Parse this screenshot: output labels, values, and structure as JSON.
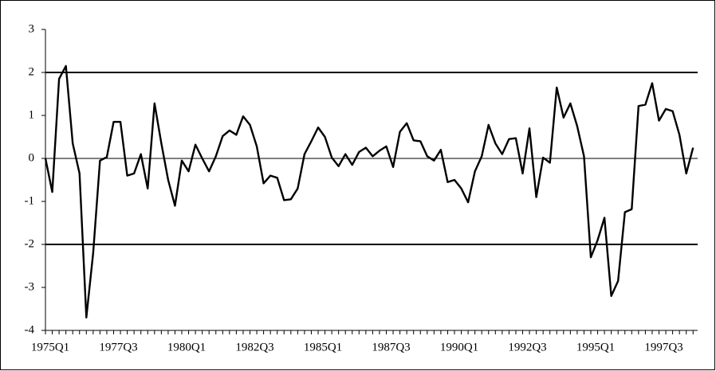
{
  "chart_data": {
    "type": "line",
    "categories": [
      "1975Q1",
      null,
      null,
      null,
      null,
      null,
      null,
      null,
      null,
      null,
      "1977Q3",
      null,
      null,
      null,
      null,
      null,
      null,
      null,
      null,
      null,
      "1980Q1",
      null,
      null,
      null,
      null,
      null,
      null,
      null,
      null,
      null,
      "1982Q3",
      null,
      null,
      null,
      null,
      null,
      null,
      null,
      null,
      null,
      "1985Q1",
      null,
      null,
      null,
      null,
      null,
      null,
      null,
      null,
      null,
      "1987Q3",
      null,
      null,
      null,
      null,
      null,
      null,
      null,
      null,
      null,
      "1990Q1",
      null,
      null,
      null,
      null,
      null,
      null,
      null,
      null,
      null,
      "1992Q3",
      null,
      null,
      null,
      null,
      null,
      null,
      null,
      null,
      null,
      "1995Q1",
      null,
      null,
      null,
      null,
      null,
      null,
      null,
      null,
      null,
      "1997Q3",
      null,
      null,
      null,
      null,
      null
    ],
    "values": [
      0.0,
      -0.78,
      1.85,
      2.15,
      0.35,
      -0.35,
      -3.7,
      -2.2,
      -0.05,
      0.03,
      0.85,
      0.85,
      -0.4,
      -0.35,
      0.1,
      -0.7,
      1.28,
      0.35,
      -0.5,
      -1.1,
      -0.05,
      -0.3,
      0.32,
      0.0,
      -0.3,
      0.05,
      0.52,
      0.65,
      0.55,
      0.98,
      0.78,
      0.28,
      -0.58,
      -0.4,
      -0.45,
      -0.97,
      -0.95,
      -0.7,
      0.1,
      0.4,
      0.72,
      0.5,
      0.02,
      -0.18,
      0.1,
      -0.15,
      0.15,
      0.25,
      0.05,
      0.18,
      0.28,
      -0.2,
      0.62,
      0.82,
      0.42,
      0.4,
      0.05,
      -0.05,
      0.2,
      -0.55,
      -0.5,
      -0.7,
      -1.02,
      -0.3,
      0.05,
      0.78,
      0.35,
      0.1,
      0.45,
      0.47,
      -0.35,
      0.7,
      -0.9,
      0.02,
      -0.1,
      1.65,
      0.95,
      1.28,
      0.75,
      0.05,
      -2.3,
      -1.9,
      -1.38,
      -3.2,
      -2.85,
      -1.25,
      -1.18,
      1.22,
      1.25,
      1.75,
      0.88,
      1.15,
      1.1,
      0.55,
      -0.35,
      0.25
    ],
    "color": "#000000",
    "ylim": [
      -4,
      3
    ],
    "yticks": [
      -4,
      -3,
      -2,
      -1,
      0,
      1,
      2,
      3
    ],
    "reference_lines": [
      -2,
      2
    ]
  }
}
